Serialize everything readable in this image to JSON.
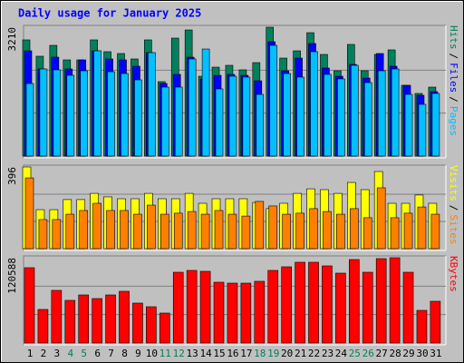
{
  "chart_data": [
    {
      "type": "bar",
      "title": "Daily usage for January 2025",
      "legend_separator": "/",
      "ylim": [
        0,
        3210
      ],
      "yticks": [
        3210
      ],
      "series": [
        {
          "name": "Hits",
          "color": "#00805c",
          "values": [
            2894,
            2487,
            2758,
            2396,
            2396,
            2894,
            2600,
            2555,
            2419,
            2894,
            1854,
            2939,
            3142,
            1989,
            2215,
            2261,
            2148,
            2328,
            3210,
            2441,
            2622,
            3074,
            2532,
            2125,
            2781,
            2125,
            2532,
            2645,
            1763,
            1560,
            1718
          ]
        },
        {
          "name": "Files",
          "color": "#0000ff",
          "values": [
            2622,
            2170,
            2464,
            2170,
            2396,
            2622,
            2419,
            2396,
            2238,
            2577,
            1808,
            2035,
            2464,
            1922,
            2012,
            2035,
            2012,
            1876,
            2848,
            2125,
            2441,
            2803,
            2193,
            1989,
            2283,
            1944,
            2555,
            2238,
            1763,
            1515,
            1605
          ]
        },
        {
          "name": "Pages",
          "color": "#00c0ff",
          "values": [
            1808,
            2170,
            2148,
            2012,
            2125,
            2622,
            2102,
            2057,
            1899,
            2577,
            1718,
            1718,
            2419,
            2667,
            1673,
            1989,
            1967,
            1537,
            2758,
            2057,
            1967,
            2600,
            2035,
            1922,
            2261,
            1831,
            2125,
            2170,
            1537,
            1289,
            1560
          ]
        }
      ]
    },
    {
      "type": "bar",
      "legend_separator": "/",
      "ylim": [
        0,
        396
      ],
      "yticks": [
        396
      ],
      "series": [
        {
          "name": "Visits",
          "color": "#ffff00",
          "values": [
            396,
            189,
            189,
            238,
            238,
            268,
            251,
            242,
            242,
            268,
            242,
            242,
            268,
            220,
            242,
            242,
            242,
            224,
            194,
            220,
            268,
            290,
            286,
            268,
            321,
            286,
            374,
            220,
            220,
            260,
            220
          ]
        },
        {
          "name": "Sites",
          "color": "#ff8000",
          "values": [
            343,
            141,
            141,
            167,
            185,
            220,
            185,
            185,
            167,
            211,
            167,
            172,
            180,
            167,
            185,
            167,
            158,
            229,
            207,
            167,
            172,
            194,
            180,
            167,
            194,
            150,
            295,
            150,
            172,
            202,
            167
          ]
        }
      ]
    },
    {
      "type": "bar",
      "ylim": [
        0,
        120588
      ],
      "yticks": [
        120588
      ],
      "categories": [
        "1",
        "2",
        "3",
        "4",
        "5",
        "6",
        "7",
        "8",
        "9",
        "10",
        "11",
        "12",
        "13",
        "14",
        "15",
        "16",
        "17",
        "18",
        "19",
        "20",
        "21",
        "22",
        "23",
        "24",
        "25",
        "26",
        "27",
        "28",
        "29",
        "30",
        "31"
      ],
      "category_colors": [
        "#000000",
        "#000000",
        "#000000",
        "#00805c",
        "#00805c",
        "#000000",
        "#000000",
        "#000000",
        "#000000",
        "#000000",
        "#00805c",
        "#00805c",
        "#000000",
        "#000000",
        "#000000",
        "#000000",
        "#000000",
        "#00805c",
        "#00805c",
        "#000000",
        "#000000",
        "#000000",
        "#000000",
        "#000000",
        "#00805c",
        "#00805c",
        "#000000",
        "#000000",
        "#000000",
        "#000000",
        "#000000"
      ],
      "series": [
        {
          "name": "KBytes",
          "color": "#ff0000",
          "values": [
            106489,
            47471,
            74414,
            60301,
            67999,
            62867,
            67999,
            73131,
            56452,
            51320,
            42339,
            100074,
            102640,
            101357,
            85961,
            84678,
            84678,
            87244,
            102640,
            107772,
            114187,
            114187,
            109055,
            98791,
            118036,
            100074,
            119319,
            120588,
            100074,
            46188,
            59018
          ]
        }
      ]
    }
  ]
}
